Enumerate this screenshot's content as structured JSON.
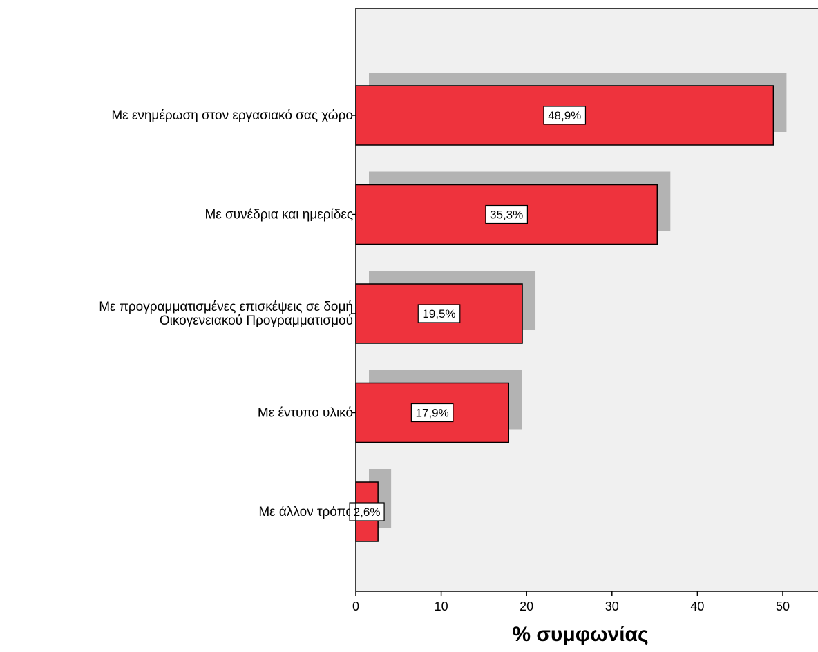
{
  "chart_data": {
    "type": "bar",
    "orientation": "horizontal",
    "categories": [
      [
        "Με ενημέρωση στον εργασιακό σας χώρο"
      ],
      [
        "Με συνέδρια και ημερίδες"
      ],
      [
        "Με προγραμματισμένες επισκέψεις σε δομή",
        "Οικογενειακού Προγραμματισμού"
      ],
      [
        "Με έντυπο υλικό"
      ],
      [
        "Με άλλον τρόπο"
      ]
    ],
    "values": [
      48.9,
      35.3,
      19.5,
      17.9,
      2.6
    ],
    "data_labels": [
      "48,9%",
      "35,3%",
      "19,5%",
      "17,9%",
      "2,6%"
    ],
    "xlabel": "% συμφωνίας",
    "xlim": [
      0,
      54
    ],
    "xticks": [
      0,
      10,
      20,
      30,
      40,
      50
    ],
    "tick_labels": [
      "0",
      "10",
      "20",
      "30",
      "40",
      "50"
    ],
    "grid": false,
    "bar_shadow": true,
    "colors": {
      "bar": "#ee333d",
      "shadow": "#b3b3b3",
      "plot_background": "#f0f0f0",
      "label_box": "#ffffff"
    }
  }
}
